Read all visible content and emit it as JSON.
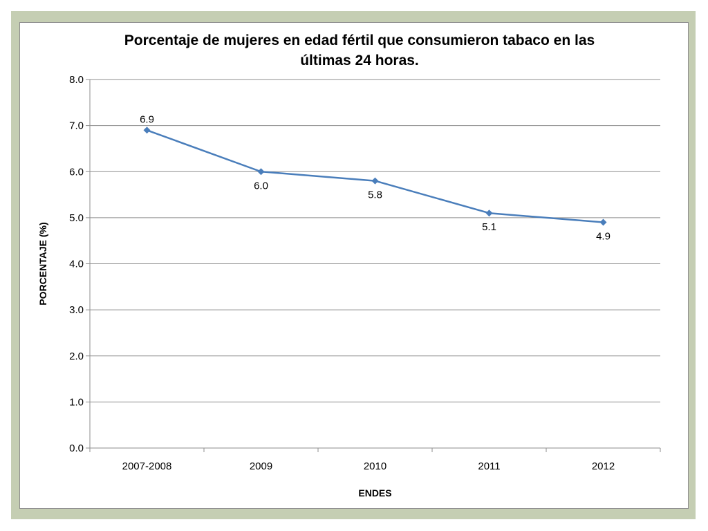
{
  "chart_data": {
    "type": "line",
    "title": "Porcentaje de mujeres en edad fértil que consumieron tabaco en las últimas 24 horas.",
    "title_lines": [
      "Porcentaje de mujeres en edad fértil que consumieron tabaco en las",
      "últimas 24 horas."
    ],
    "xlabel": "ENDES",
    "ylabel": "PORCENTAJE (%)",
    "categories": [
      "2007-2008",
      "2009",
      "2010",
      "2011",
      "2012"
    ],
    "series": [
      {
        "values": [
          6.9,
          6.0,
          5.8,
          5.1,
          4.9
        ],
        "data_labels": [
          "6.9",
          "6.0",
          "5.8",
          "5.1",
          "4.9"
        ],
        "label_position": [
          "above",
          "below",
          "below",
          "below",
          "below"
        ],
        "color": "#4a7ebb",
        "marker": "diamond"
      }
    ],
    "ylim": [
      0,
      8
    ],
    "yticks": [
      "0.0",
      "1.0",
      "2.0",
      "3.0",
      "4.0",
      "5.0",
      "6.0",
      "7.0",
      "8.0"
    ],
    "grid": true,
    "legend": "none"
  },
  "colors": {
    "frame_background": "#c5ceb3",
    "gridline": "#8d8d8d",
    "line": "#4a7ebb"
  }
}
